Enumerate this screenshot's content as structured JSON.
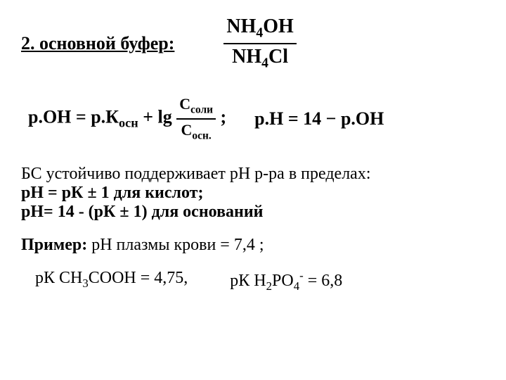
{
  "header": {
    "title": "2. основной буфер:",
    "buffer_num": "NH",
    "buffer_num_sub": "4",
    "buffer_num_end": "OH",
    "buffer_den": "NH",
    "buffer_den_sub": "4",
    "buffer_den_end": "Cl"
  },
  "formula": {
    "poh_left": "p.OH = p.К",
    "poh_sub": "осн",
    "poh_plus": " + lg",
    "frac_num": "С",
    "frac_num_sub": "соли",
    "frac_den": "С",
    "frac_den_sub": "осн.",
    "semicolon": ";",
    "ph_eq": "p.H = 14 − p.OH"
  },
  "body": {
    "line1": "БС устойчиво поддерживает рН р-ра в пределах:",
    "line2": "рН = рК ± 1 для кислот;",
    "line3": "рН= 14 - (рК ± 1) для оснований",
    "example_label": "Пример:",
    "example_text": " рН плазмы крови = 7,4 ;",
    "comp1_a": "рК СН",
    "comp1_sub": "3",
    "comp1_b": "СООН = 4,75,",
    "comp2_a": "рК H",
    "comp2_sub1": "2",
    "comp2_b": "PO",
    "comp2_sub2": "4",
    "comp2_sup": "-",
    "comp2_c": " = 6,8"
  },
  "colors": {
    "text": "#000000",
    "background": "#ffffff"
  }
}
